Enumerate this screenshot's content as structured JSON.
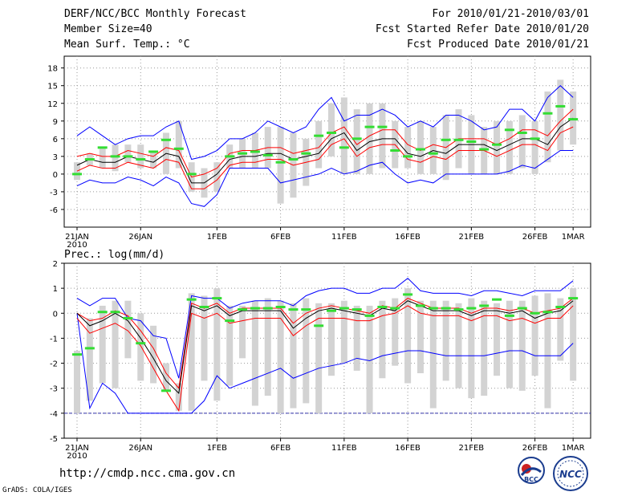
{
  "header": {
    "title": "DERF/NCC/BCC Monthly Forecast",
    "member_size": "Member Size=40",
    "variable": "Mean Surf. Temp.: °C",
    "period": "For 2010/01/21-2010/03/01",
    "started": "Fcst Started Refer Date 2010/01/20",
    "produced": "Fcst Produced Date 2010/01/21"
  },
  "panel2_label": "Prec.: log(mm/d)",
  "footer": {
    "url": "http://cmdp.ncc.cma.gov.cn",
    "credit": "GrADS: COLA/IGES"
  },
  "logos": {
    "bcc": "BCC",
    "ncc": "NCC"
  },
  "colors": {
    "envelope": "#0000ff",
    "quartile": "#ff0000",
    "mean": "#000000",
    "box": "#d3d3d3",
    "obs": "#33dd33"
  },
  "chart_data": [
    {
      "type": "box-ensemble",
      "title": "Mean Surf. Temp.: °C",
      "ylim": [
        -9,
        20
      ],
      "yticks": [
        -6,
        -3,
        0,
        3,
        6,
        9,
        12,
        15,
        18
      ],
      "x_tick_labels": [
        "21JAN\n2010",
        "26JAN",
        "1FEB",
        "6FEB",
        "11FEB",
        "16FEB",
        "21FEB",
        "26FEB",
        "1MAR"
      ],
      "x_tick_days": [
        0,
        5,
        11,
        16,
        21,
        26,
        31,
        36,
        39
      ],
      "box_low": [
        -1,
        1.5,
        1,
        0.5,
        2,
        1,
        1,
        0,
        1,
        -3,
        -4,
        -3,
        1,
        1,
        1,
        1,
        -5,
        -4,
        -2,
        1,
        3,
        0,
        0,
        0,
        1,
        1,
        1,
        0,
        0,
        -1,
        1,
        0,
        0,
        0,
        0,
        1,
        0,
        2,
        4,
        5
      ],
      "box_high": [
        2,
        3.5,
        4.5,
        5,
        5,
        5,
        4,
        7,
        9,
        2,
        1,
        2,
        5,
        6,
        7,
        8,
        8,
        7,
        6,
        9,
        12,
        13,
        11,
        12,
        12,
        9,
        8,
        9,
        8,
        10,
        11,
        10,
        8,
        9,
        9,
        10,
        9,
        14,
        16,
        14
      ],
      "mean": [
        1.5,
        2.5,
        2,
        2,
        3,
        2.5,
        2,
        3.5,
        3,
        -1.5,
        -1.5,
        0,
        2.5,
        3,
        3,
        3.5,
        3.5,
        2.5,
        3,
        3.5,
        6,
        7,
        4,
        5.5,
        6,
        6,
        3.5,
        3,
        4,
        3.5,
        5,
        5,
        5,
        4,
        5,
        6,
        6,
        5,
        8,
        9.5
      ],
      "q_high": [
        3,
        3.5,
        3,
        3,
        4,
        3.5,
        3,
        4.5,
        4,
        -0.5,
        0,
        1,
        3.5,
        4,
        4,
        4.5,
        4.5,
        3.5,
        4,
        4.5,
        7,
        8,
        5,
        6.5,
        7.5,
        7.5,
        5,
        4,
        5,
        4.5,
        6,
        6,
        6,
        5,
        6,
        7.5,
        7.5,
        6.5,
        9,
        11
      ],
      "q_low": [
        0.5,
        1.5,
        1,
        1,
        2,
        1.5,
        1,
        2.5,
        2,
        -2.5,
        -2.5,
        -1,
        1.5,
        2,
        2,
        2.5,
        2.5,
        1.5,
        2,
        2.5,
        5,
        6,
        3,
        4.5,
        5,
        5,
        2.5,
        2,
        3,
        2.5,
        4,
        4,
        4,
        3,
        4,
        5,
        5,
        4,
        7,
        8
      ],
      "env_high": [
        6.5,
        8,
        6.5,
        5,
        6,
        6.5,
        6.5,
        8,
        9,
        2.5,
        3,
        4,
        6,
        6,
        7,
        9,
        8,
        7,
        8,
        11,
        13,
        9,
        10,
        10,
        11,
        10,
        8,
        9,
        8,
        10,
        10,
        9,
        7.5,
        8,
        11,
        11,
        9,
        13,
        15,
        13
      ],
      "env_low": [
        -2,
        -1,
        -1.5,
        -1.5,
        -0.5,
        -1,
        -2,
        -0.5,
        -1.5,
        -5,
        -5.5,
        -3.5,
        1,
        1,
        1,
        1,
        -1.5,
        -1,
        -0.5,
        0,
        1,
        0,
        0.5,
        1.5,
        2,
        0,
        -1.5,
        -1,
        -1.5,
        0,
        0,
        0,
        0,
        0,
        0.5,
        1.5,
        1,
        2.5,
        4,
        4
      ],
      "observed": [
        0,
        2.5,
        4.5,
        3,
        3,
        2.5,
        3.8,
        5.8,
        4.3,
        0,
        null,
        null,
        3,
        3.5,
        3.8,
        3.2,
        2,
        2.5,
        3.5,
        6.5,
        7,
        4.5,
        6,
        8,
        8,
        4,
        3,
        4.2,
        3.5,
        5.8,
        5.8,
        5.5,
        4.2,
        5,
        7.5,
        7,
        6,
        10.3,
        11.5,
        9.3
      ]
    },
    {
      "type": "box-ensemble",
      "title": "Prec.: log(mm/d)",
      "ylim": [
        -5,
        2
      ],
      "yticks": [
        -5,
        -4,
        -3,
        -2,
        -1,
        0,
        1,
        2
      ],
      "x_tick_labels": [
        "21JAN\n2010",
        "26JAN",
        "1FEB",
        "6FEB",
        "11FEB",
        "16FEB",
        "21FEB",
        "26FEB",
        "1MAR"
      ],
      "x_tick_days": [
        0,
        5,
        11,
        16,
        21,
        26,
        31,
        36,
        39
      ],
      "floor_value": -4,
      "box_low": [
        -4,
        -3.5,
        -2.8,
        -3,
        -1.8,
        -2.7,
        -2.8,
        -3.1,
        -3.9,
        -3.9,
        -2.7,
        -3.5,
        -2.9,
        -1.8,
        -3.7,
        -3.3,
        -4,
        -3.8,
        -3.6,
        -4,
        -2.5,
        -2,
        -2.3,
        -4,
        -2.6,
        -2.1,
        -2.8,
        -2.4,
        -3.8,
        -2.7,
        -3,
        -3.4,
        -3.3,
        -2.5,
        -3,
        -3.1,
        -2.5,
        -3.8,
        -1.9,
        -2.7
      ],
      "box_high": [
        -1.5,
        -0.2,
        0.3,
        0.5,
        0.5,
        0,
        -0.5,
        -2,
        -2.8,
        0.8,
        0.7,
        1,
        0.3,
        0.3,
        0.5,
        0.6,
        0.5,
        0.4,
        0.6,
        0.4,
        0.4,
        0.5,
        0.3,
        0.3,
        0.5,
        0.6,
        1,
        0.5,
        0.5,
        0.5,
        0.4,
        0.6,
        0.5,
        0.4,
        0.5,
        0.5,
        0.7,
        0.8,
        0.6,
        1
      ],
      "mean": [
        0,
        -0.5,
        -0.3,
        0,
        -0.3,
        -1,
        -1.8,
        -2.7,
        -3.2,
        0.3,
        0.1,
        0.3,
        -0.1,
        0.1,
        0.1,
        0.1,
        0.1,
        -0.6,
        -0.2,
        0.1,
        0.2,
        0.1,
        0,
        -0.1,
        0.2,
        0.1,
        0.5,
        0.3,
        0.1,
        0.1,
        0.1,
        -0.1,
        0.1,
        0.1,
        0,
        0.1,
        -0.2,
        0,
        0.1,
        0.5
      ],
      "q_high": [
        0,
        -0.3,
        -0.2,
        0.1,
        -0.1,
        -0.7,
        -1.4,
        -2.4,
        -3,
        0.4,
        0.2,
        0.4,
        0,
        0.2,
        0.2,
        0.2,
        0.2,
        -0.4,
        0,
        0.2,
        0.3,
        0.2,
        0.1,
        0,
        0.3,
        0.2,
        0.6,
        0.4,
        0.2,
        0.2,
        0.2,
        0,
        0.2,
        0.2,
        0.1,
        0.2,
        0,
        0.1,
        0.2,
        0.6
      ],
      "q_low": [
        -0.2,
        -0.8,
        -0.6,
        -0.4,
        -0.7,
        -1.3,
        -2.2,
        -3.1,
        -3.9,
        0,
        -0.2,
        0,
        -0.4,
        -0.3,
        -0.2,
        -0.2,
        -0.2,
        -0.9,
        -0.5,
        -0.2,
        -0.2,
        -0.2,
        -0.3,
        -0.3,
        -0.1,
        0,
        0.3,
        0,
        -0.1,
        -0.1,
        -0.1,
        -0.3,
        -0.1,
        -0.1,
        -0.3,
        -0.2,
        -0.4,
        -0.2,
        -0.2,
        0.3
      ],
      "env_high": [
        0.6,
        0.3,
        0.6,
        0.6,
        -0.2,
        -0.3,
        -0.9,
        -1,
        -2.6,
        0.7,
        0.6,
        0.6,
        0.2,
        0.4,
        0.5,
        0.5,
        0.5,
        0.3,
        0.7,
        0.9,
        1,
        1,
        0.8,
        0.8,
        1,
        1,
        1.4,
        0.9,
        0.8,
        0.8,
        0.8,
        0.7,
        0.9,
        0.9,
        0.8,
        0.7,
        0.9,
        0.9,
        0.9,
        1.3
      ],
      "env_low": [
        0,
        -3.8,
        -2.8,
        -3.2,
        -4,
        -4,
        -4,
        -4,
        -4,
        -4,
        -3.5,
        -2.5,
        -3,
        -2.8,
        -2.6,
        -2.4,
        -2.2,
        -2.6,
        -2.4,
        -2.2,
        -2.1,
        -2,
        -1.8,
        -1.9,
        -1.7,
        -1.6,
        -1.5,
        -1.5,
        -1.6,
        -1.7,
        -1.7,
        -1.7,
        -1.7,
        -1.6,
        -1.5,
        -1.5,
        -1.7,
        -1.7,
        -1.7,
        -1.2
      ],
      "observed": [
        -1.65,
        -1.4,
        0.05,
        0.05,
        -0.2,
        -1.2,
        null,
        -3.1,
        null,
        0.55,
        0.25,
        0.6,
        -0.3,
        0.15,
        0.2,
        0.2,
        0.25,
        0.15,
        0.15,
        -0.5,
        0.1,
        0.2,
        0.15,
        -0.1,
        0.25,
        0.2,
        0.75,
        0.3,
        0.2,
        0.2,
        0.15,
        0.2,
        0.3,
        0.55,
        -0.1,
        0.2,
        0,
        0.05,
        0.25,
        0.6
      ]
    }
  ]
}
